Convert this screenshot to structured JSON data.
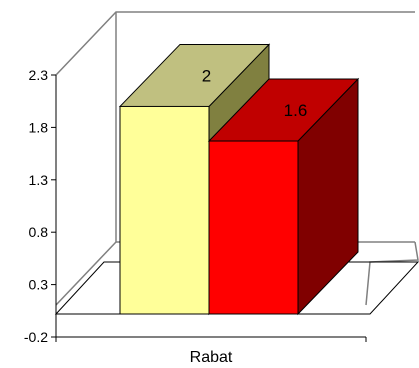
{
  "chart_data": {
    "type": "bar",
    "title": "",
    "xlabel": "",
    "ylabel": "",
    "categories": [
      "Rabat"
    ],
    "series": [
      {
        "values": [
          2
        ],
        "colors": {
          "front": "#FFFF99",
          "side": "#808040",
          "top": "#C0C080"
        }
      },
      {
        "values": [
          1.6
        ],
        "colors": {
          "front": "#FF0000",
          "side": "#800000",
          "top": "#C00000"
        }
      }
    ],
    "data_labels": [
      "2",
      "1.6"
    ],
    "y_ticks": [
      "2.3",
      "1.8",
      "1.3",
      "0.8",
      "0.3",
      "-0.2"
    ],
    "ylim": [
      -0.2,
      2.3
    ],
    "grid": false,
    "legend": "none",
    "view": "3d"
  }
}
